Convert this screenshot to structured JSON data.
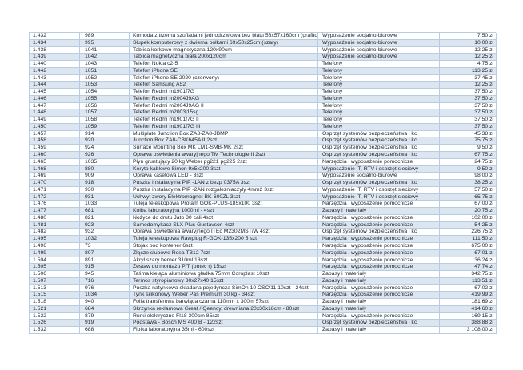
{
  "colors": {
    "band_row": "#dce6f1",
    "grid_border": "#b8cce4",
    "text": "#262626"
  },
  "table": {
    "columns": [
      "id",
      "code",
      "description",
      "category",
      "price"
    ],
    "currency_suffix": "zł",
    "rows": [
      {
        "id": "1.432",
        "code": "989",
        "description": "Komoda z trzema szufladami jednodrzwiowa bez blatu 56x57x160cm (grafitowa)",
        "category": "Wyposażenie socjalno-biurowe",
        "price": "7,50 zł"
      },
      {
        "id": "1.434",
        "code": "995",
        "description": "Słupek komputerowy z dwiema półkami 69x50x25cm (szary)",
        "category": "Wyposażenie socjalno-biurowe",
        "price": "10,00 zł"
      },
      {
        "id": "1.438",
        "code": "1041",
        "description": "Tablica korkowo magnetyczna 120x90cm",
        "category": "Wyposażenie socjalno-biurowe",
        "price": "12,25 zł"
      },
      {
        "id": "1.439",
        "code": "1042",
        "description": "Tablica magnetyczna biała 200x120cm",
        "category": "Wyposażenie socjalno-biurowe",
        "price": "12,25 zł"
      },
      {
        "id": "1.440",
        "code": "1043",
        "description": "Telefon Nokia c2-5",
        "category": "Telefony",
        "price": "4,75 zł"
      },
      {
        "id": "1.442",
        "code": "1051",
        "description": "Telefon iPhone SE",
        "category": "Telefony",
        "price": "113,25 zł"
      },
      {
        "id": "1.443",
        "code": "1052",
        "description": "Telefon iPhone SE 2020 (czerwony)",
        "category": "Telefony",
        "price": "37,45 zł"
      },
      {
        "id": "1.444",
        "code": "1053",
        "description": "Telefon Samsung A52",
        "category": "Telefony",
        "price": "12,25 zł"
      },
      {
        "id": "1.445",
        "code": "1054",
        "description": "Telefon Redmi m1901f7G",
        "category": "Telefony",
        "price": "37,50 zł"
      },
      {
        "id": "1.446",
        "code": "1055",
        "description": "Telefon Redmi m2004J9AG",
        "category": "Telefony",
        "price": "37,50 zł"
      },
      {
        "id": "1.447",
        "code": "1056",
        "description": "Telefon Redmi m2004J9AG II",
        "category": "Telefony",
        "price": "37,50 zł"
      },
      {
        "id": "1.448",
        "code": "1057",
        "description": "Telefon Redmi m2003j15sg",
        "category": "Telefony",
        "price": "37,50 zł"
      },
      {
        "id": "1.449",
        "code": "1058",
        "description": "Telefon Redmi m1901f7G II",
        "category": "Telefony",
        "price": "37,50 zł"
      },
      {
        "id": "1.450",
        "code": "1059",
        "description": "Telefon Redmi m1901f7G III",
        "category": "Telefony",
        "price": "37,50 zł"
      },
      {
        "id": "1.457",
        "code": "914",
        "description": "Multiplate Junction Box ZA8-ZA8-JBMP",
        "category": "Osprzęt systemów bezpieczeństwa i kc",
        "price": "45,38 zł"
      },
      {
        "id": "1.458",
        "code": "920",
        "description": "Junction Box ZA8-CBK645A II 2szt",
        "category": "Osprzęt systemów bezpieczeństwa i kc",
        "price": "75,75 zł"
      },
      {
        "id": "1.459",
        "code": "924",
        "description": "Surface Mounting Box MK LM1-SMB-MK 2szt",
        "category": "Osprzęt systemów bezpieczeństwa i kc",
        "price": "9,50 zł"
      },
      {
        "id": "1.460",
        "code": "926",
        "description": "Oprawa oświetlenia awaryjnego TM Technologie II 2szt",
        "category": "Osprzęt systemów bezpieczeństwa i kc",
        "price": "67,75 zł"
      },
      {
        "id": "1.465",
        "code": "1035",
        "description": "Płyn gruntujący 20 kg Weber pg221 pg225 2szt",
        "category": "Narzędzia i wyposażenie pomocnicze",
        "price": "24,75 zł"
      },
      {
        "id": "1.468",
        "code": "880",
        "description": "Koryto kablowe Simon 9x5x200 3szt",
        "category": "Wyposażenie IT, RTV i osprzęt sieciowy",
        "price": "9,50 zł"
      },
      {
        "id": "1.469",
        "code": "909",
        "description": "Oprawa kasetowa LED - 3szt",
        "category": "Wyposażenie socjalno-biurowe",
        "price": "98,00 zł"
      },
      {
        "id": "1.470",
        "code": "918",
        "description": "Puszka instalacyjna PIP -1AN z bezp 0375A 3szt",
        "category": "Osprzęt systemów bezpieczeństwa i kc",
        "price": "38,25 zł"
      },
      {
        "id": "1.471",
        "code": "930",
        "description": "Puszka instalacyjna PIP -2AN rozgalezniaczyly 4mm2 3szt",
        "category": "Wyposażenie IT, RTV i osprzęt sieciowy",
        "price": "57,50 zł"
      },
      {
        "id": "1.472",
        "code": "931",
        "description": "Uchwyt zwory Elektromagnet BK-600ZL 3szt",
        "category": "Wyposażenie IT, RTV i osprzęt sieciowy",
        "price": "65,75 zł"
      },
      {
        "id": "1.476",
        "code": "1033",
        "description": "Tuleja teleskopowa Protam GOK-PLUS-185x100 3szt",
        "category": "Narzędzia i wyposażenie pomocnicze",
        "price": "67,00 zł"
      },
      {
        "id": "1.477",
        "code": "681",
        "description": "Kolba laboratoryjna 1000ml - 4szt",
        "category": "Zapasy i materiały",
        "price": "20,75 zł"
      },
      {
        "id": "1.480",
        "code": "821",
        "description": "Nożyce do drutu Jato 30 cali 4szt",
        "category": "Narzędzia i wyposażenie pomocnicze",
        "price": "102,00 zł"
      },
      {
        "id": "1.481",
        "code": "923",
        "description": "Samodomykacz SLX Plus Gustavson 4szt",
        "category": "Narzędzia i wyposażenie pomocnicze",
        "price": "54,25 zł"
      },
      {
        "id": "1.482",
        "code": "932",
        "description": "Oprawa oświetlenia awaryjnego ITEc M2302MST/W 4szt",
        "category": "Osprzęt systemów bezpieczeństwa i kc",
        "price": "226,75 zł"
      },
      {
        "id": "1.495",
        "code": "1032",
        "description": "Tuleja teleskopowa Rawplug R-GOK-135x200 5 szt",
        "category": "Narzędzia i wyposażenie pomocnicze",
        "price": "111,50 zł"
      },
      {
        "id": "1.496",
        "code": "73",
        "description": "Stojak pod kontener 6szt",
        "category": "Narzędzia i wyposażenie pomocnicze",
        "price": "675,00 zł"
      },
      {
        "id": "1.499",
        "code": "807",
        "description": "Złącze słupowe Rosa TB12 7szt",
        "category": "Narzędzia i wyposażenie pomocnicze",
        "price": "67,01 zł"
      },
      {
        "id": "1.504",
        "code": "891",
        "description": "Akryl szary berner 310ml 13szt",
        "category": "Narzędzia i wyposażenie pomocnicze",
        "price": "36,24 zł"
      },
      {
        "id": "1.505",
        "code": "915",
        "description": "Zestaw do montażu P/T (ontec r) 15szt",
        "category": "Narzędzia i wyposażenie pomocnicze",
        "price": "47,74 zł"
      },
      {
        "id": "1.506",
        "code": "945",
        "description": "Taśma klejąca aluminiowa gładka 75mm Coroplast 10szt",
        "category": "Zapasy i materiały",
        "price": "342,75 zł"
      },
      {
        "id": "1.507",
        "code": "716",
        "description": "Termos styropianowy 30x27x40 15szt",
        "category": "Zapasy i materiały",
        "price": "113,51 zł"
      },
      {
        "id": "1.513",
        "code": "976",
        "description": "Puszka natynkowa składana pojedyncza SimOn 10 CSC/11 10szt - 24szt",
        "category": "Narzędzia i wyposażenie pomocnicze",
        "price": "67,02 zł"
      },
      {
        "id": "1.515",
        "code": "1034",
        "description": "Tynk silikonowy Weber Pas Premium 30 kg - 34szt",
        "category": "Narzędzia i wyposażenie pomocnicze",
        "price": "419,99 zł"
      },
      {
        "id": "1.518",
        "code": "940",
        "description": "Folia transferowa barwiąca czarna 110mm x 300m 57szt",
        "category": "Zapasy i materiały",
        "price": "181,69 zł"
      },
      {
        "id": "1.521",
        "code": "684",
        "description": "Skrzynka reklamowa Great / Qeency, drewniana 20x30x18cm - 80szt",
        "category": "Zapasy i materiały",
        "price": "414,60 zł"
      },
      {
        "id": "1.522",
        "code": "879",
        "description": "Rurki elektryczne FI18 300cm 85szt",
        "category": "Narzędzia i wyposażenie pomocnicze",
        "price": "169,15 zł"
      },
      {
        "id": "1.526",
        "code": "919",
        "description": "Podstawa - Bosch MS 400 B - 122szt",
        "category": "Osprzęt systemów bezpieczeństwa i kc",
        "price": "388,88 zł"
      },
      {
        "id": "1.532",
        "code": "688",
        "description": "Fiolka laboratoryjna 35ml - 600szt",
        "category": "Zapasy i materiały",
        "price": "3 108,00 zł"
      }
    ]
  }
}
